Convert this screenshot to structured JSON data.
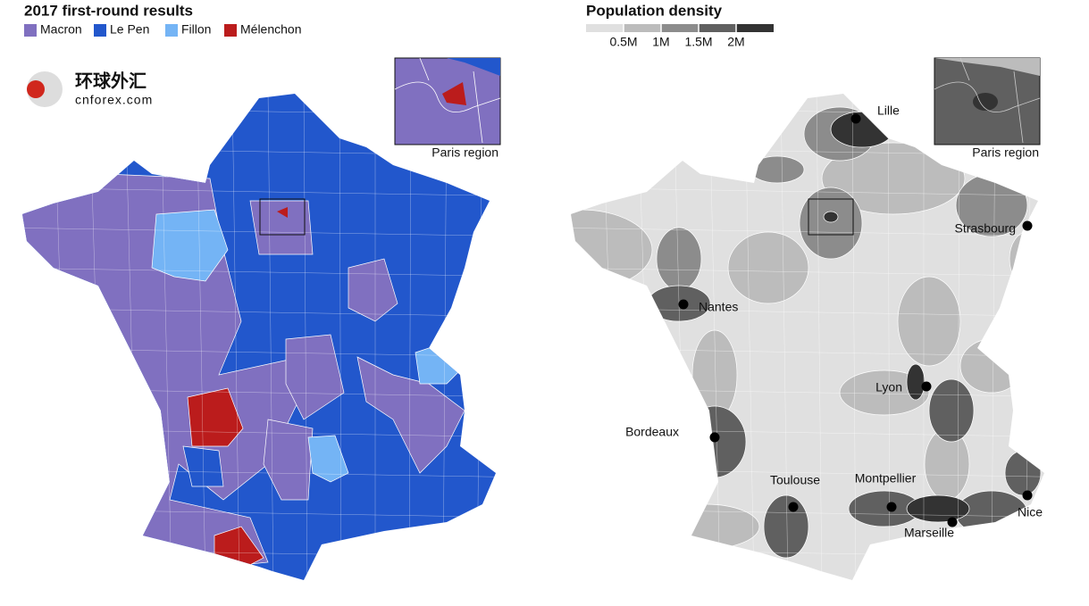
{
  "left": {
    "title": "2017 first-round results",
    "legend": [
      {
        "name": "Macron",
        "color": "#8070c0"
      },
      {
        "name": "Le Pen",
        "color": "#2257cc"
      },
      {
        "name": "Fillon",
        "color": "#74b4f5"
      },
      {
        "name": "Mélenchon",
        "color": "#bb1c1c"
      }
    ],
    "inset_label": "Paris region"
  },
  "right": {
    "title": "Population density",
    "scale": {
      "colors": [
        "#e0e0e0",
        "#bcbcbc",
        "#8c8c8c",
        "#606060",
        "#333333"
      ],
      "ticks": [
        {
          "value": 500000,
          "label": "0.5M"
        },
        {
          "value": 1000000,
          "label": "1M"
        },
        {
          "value": 1500000,
          "label": "1.5M"
        },
        {
          "value": 2000000,
          "label": "2M"
        }
      ]
    },
    "cities": [
      "Lille",
      "Strasbourg",
      "Nantes",
      "Lyon",
      "Bordeaux",
      "Toulouse",
      "Montpellier",
      "Marseille",
      "Nice"
    ],
    "inset_label": "Paris region"
  },
  "watermark": {
    "name": "环球外汇",
    "url": "cnforex.com"
  }
}
